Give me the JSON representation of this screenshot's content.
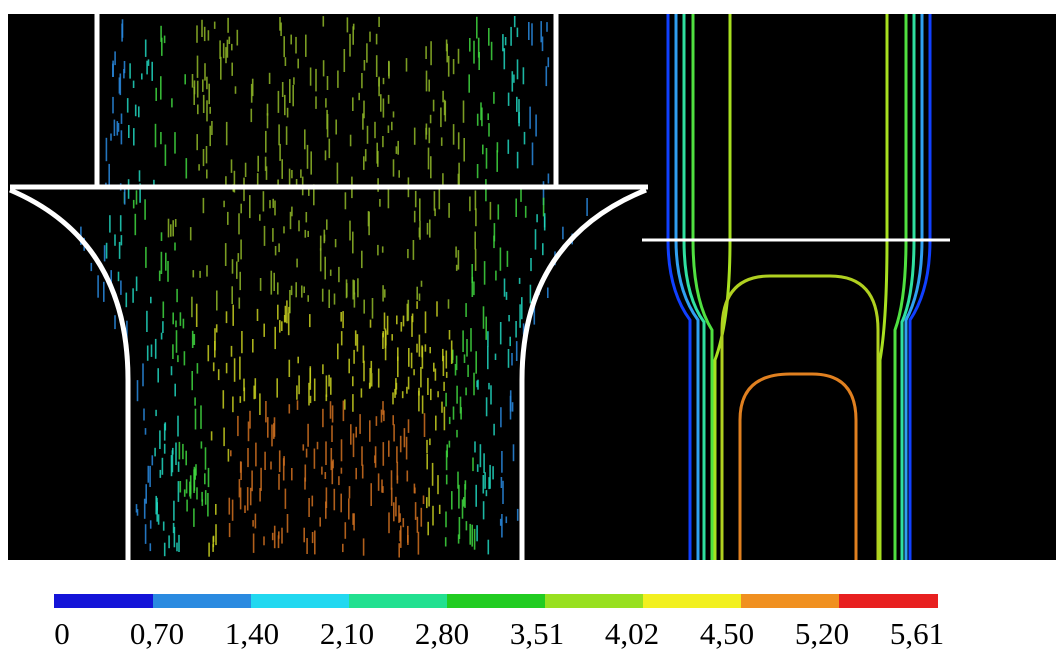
{
  "colorbar": {
    "labels": [
      "0",
      "0,70",
      "1,40",
      "2,10",
      "2,80",
      "3,51",
      "4,02",
      "4,50",
      "5,20",
      "5,61"
    ]
  }
}
